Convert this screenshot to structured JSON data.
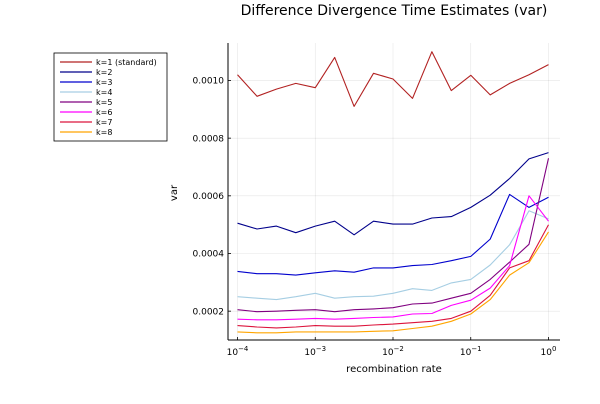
{
  "chart_data": {
    "type": "line",
    "title": "Difference Divergence Time Estimates (var)",
    "xlabel": "recombination rate",
    "ylabel": "var",
    "xscale": "log",
    "xlim": [
      0.0001,
      1
    ],
    "ylim": [
      0.0001,
      0.00113
    ],
    "x_ticks": [
      {
        "value": 0.0001,
        "base": "10",
        "exp": "−4"
      },
      {
        "value": 0.001,
        "base": "10",
        "exp": "−3"
      },
      {
        "value": 0.01,
        "base": "10",
        "exp": "−2"
      },
      {
        "value": 0.1,
        "base": "10",
        "exp": "−1"
      },
      {
        "value": 1,
        "base": "10",
        "exp": "0"
      }
    ],
    "y_ticks": [
      {
        "value": 0.0002,
        "label": "0.0002"
      },
      {
        "value": 0.0004,
        "label": "0.0004"
      },
      {
        "value": 0.0006,
        "label": "0.0006"
      },
      {
        "value": 0.0008,
        "label": "0.0008"
      },
      {
        "value": 0.001,
        "label": "0.0010"
      }
    ],
    "grid": true,
    "legend_position": "top-left (outside plot)",
    "x": [
      0.0001,
      0.000178,
      0.000316,
      0.000562,
      0.001,
      0.00178,
      0.00316,
      0.00562,
      0.01,
      0.0178,
      0.0316,
      0.0562,
      0.1,
      0.178,
      0.316,
      0.562,
      1
    ],
    "series": [
      {
        "name": "k=1 (standard)",
        "color": "#b22222",
        "values": [
          0.00102,
          0.000945,
          0.00097,
          0.00099,
          0.000975,
          0.00108,
          0.00091,
          0.001025,
          0.001005,
          0.000938,
          0.0011,
          0.000965,
          0.001018,
          0.00095,
          0.00099,
          0.00102,
          0.001055
        ]
      },
      {
        "name": "k=2",
        "color": "#00008b",
        "values": [
          0.000505,
          0.000485,
          0.000495,
          0.000472,
          0.000495,
          0.000512,
          0.000465,
          0.000512,
          0.000502,
          0.000502,
          0.000523,
          0.000528,
          0.00056,
          0.000602,
          0.00066,
          0.000728,
          0.00075
        ]
      },
      {
        "name": "k=3",
        "color": "#0000cd",
        "values": [
          0.000338,
          0.00033,
          0.00033,
          0.000325,
          0.000333,
          0.00034,
          0.000335,
          0.00035,
          0.00035,
          0.000358,
          0.000362,
          0.000375,
          0.00039,
          0.00045,
          0.000605,
          0.00056,
          0.000595
        ]
      },
      {
        "name": "k=4",
        "color": "#a6cee3",
        "values": [
          0.00025,
          0.000245,
          0.00024,
          0.00025,
          0.000262,
          0.000245,
          0.00025,
          0.000252,
          0.000262,
          0.000278,
          0.000272,
          0.000298,
          0.00031,
          0.00036,
          0.00043,
          0.000548,
          0.00052
        ]
      },
      {
        "name": "k=5",
        "color": "#800080",
        "values": [
          0.000205,
          0.000198,
          0.0002,
          0.000203,
          0.000205,
          0.000198,
          0.000205,
          0.000208,
          0.000212,
          0.000225,
          0.000228,
          0.000245,
          0.000262,
          0.00031,
          0.00037,
          0.000432,
          0.00073
        ]
      },
      {
        "name": "k=6",
        "color": "#ff00ff",
        "values": [
          0.000172,
          0.00017,
          0.00017,
          0.000172,
          0.000175,
          0.000172,
          0.000175,
          0.000178,
          0.00018,
          0.00019,
          0.000192,
          0.00022,
          0.000238,
          0.00028,
          0.000358,
          0.0006,
          0.000512
        ]
      },
      {
        "name": "k=7",
        "color": "#dc143c",
        "values": [
          0.00015,
          0.000145,
          0.000142,
          0.000145,
          0.00015,
          0.000148,
          0.000148,
          0.000152,
          0.000155,
          0.00016,
          0.000165,
          0.000175,
          0.0002,
          0.000255,
          0.00035,
          0.000375,
          0.0005
        ]
      },
      {
        "name": "k=8",
        "color": "#ffa500",
        "values": [
          0.000128,
          0.000125,
          0.000125,
          0.000128,
          0.000128,
          0.000128,
          0.000128,
          0.00013,
          0.000132,
          0.00014,
          0.000148,
          0.000165,
          0.00019,
          0.00024,
          0.000325,
          0.000368,
          0.000475
        ]
      }
    ]
  }
}
